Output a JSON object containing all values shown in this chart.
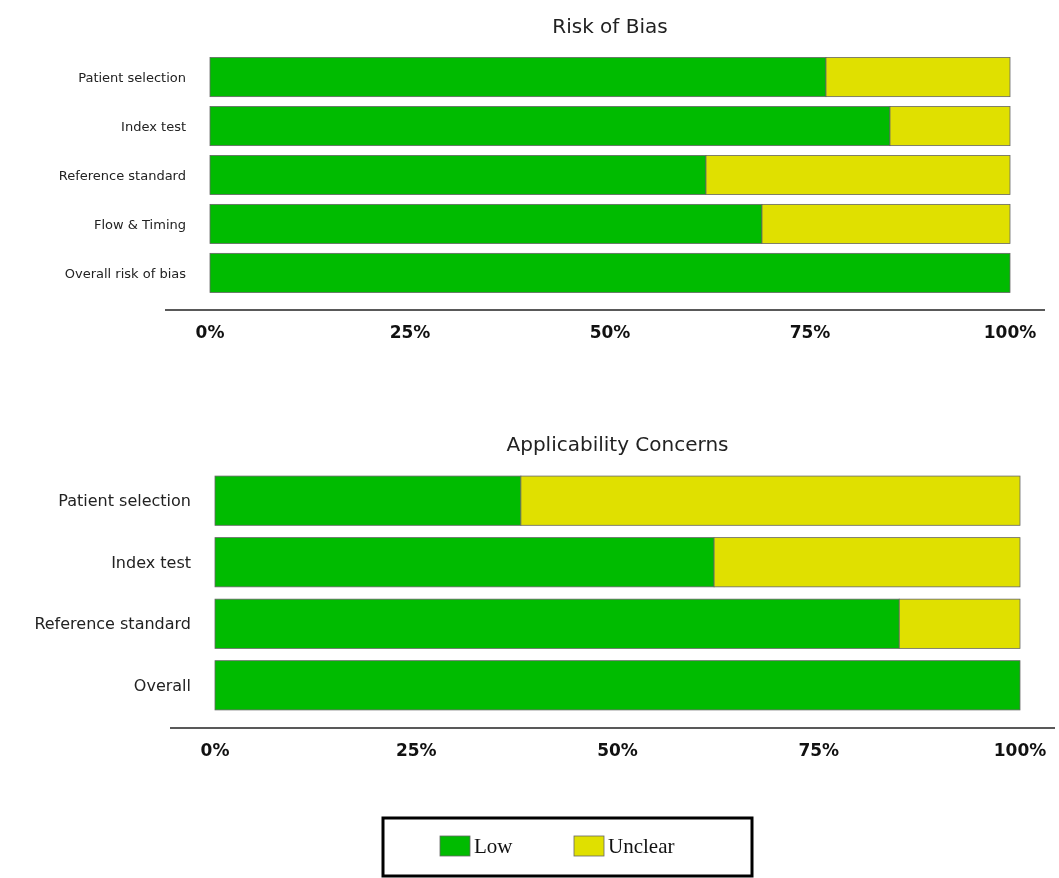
{
  "chart_data": [
    {
      "type": "bar",
      "orientation": "horizontal",
      "stacked": true,
      "title": "Risk of Bias",
      "categories": [
        "Patient selection",
        "Index test",
        "Reference standard",
        "Flow & Timing",
        "Overall risk of bias"
      ],
      "series": [
        {
          "name": "Low",
          "color": "#00bb00",
          "values": [
            77,
            85,
            62,
            69,
            100
          ]
        },
        {
          "name": "Unclear",
          "color": "#e0e000",
          "values": [
            23,
            15,
            38,
            31,
            0
          ]
        }
      ],
      "xlim": [
        0,
        100
      ],
      "xticks": [
        {
          "value": 0,
          "label": "0%"
        },
        {
          "value": 25,
          "label": "25%"
        },
        {
          "value": 50,
          "label": "50%"
        },
        {
          "value": 75,
          "label": "75%"
        },
        {
          "value": 100,
          "label": "100%"
        }
      ],
      "legend": "bottom"
    },
    {
      "type": "bar",
      "orientation": "horizontal",
      "stacked": true,
      "title": "Applicability Concerns",
      "categories": [
        "Patient selection",
        "Index test",
        "Reference standard",
        "Overall"
      ],
      "series": [
        {
          "color": "#00bb00",
          "values": [
            38,
            62,
            85,
            100
          ]
        },
        {
          "color": "#e0e000",
          "values": [
            62,
            38,
            15,
            0
          ]
        }
      ],
      "xlim": [
        0,
        100
      ],
      "xticks": [
        {
          "value": 0,
          "label": "0%"
        },
        {
          "value": 25,
          "label": "25%"
        },
        {
          "value": 50,
          "label": "50%"
        },
        {
          "value": 75,
          "label": "75%"
        },
        {
          "value": 100,
          "label": "100%"
        }
      ]
    }
  ]
}
